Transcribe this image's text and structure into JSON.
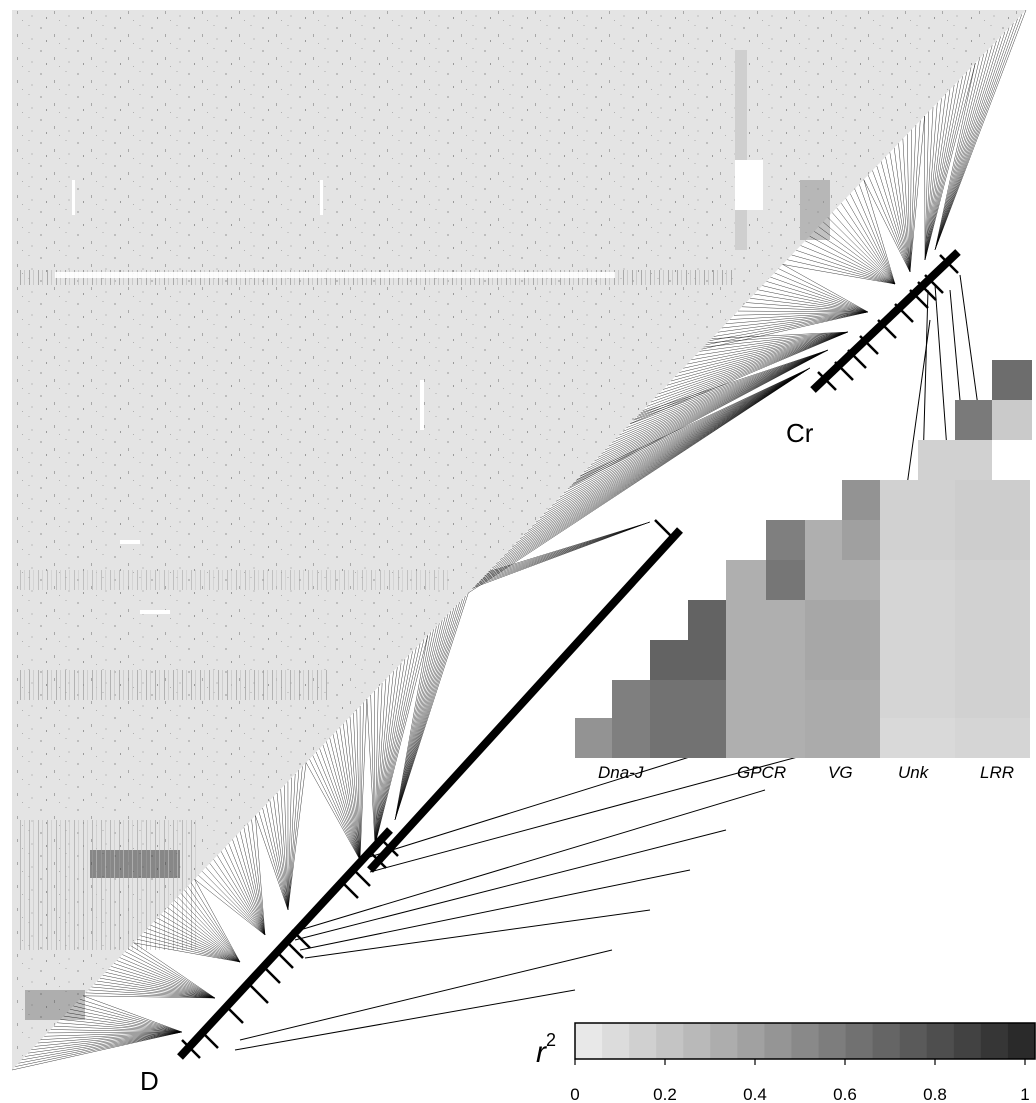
{
  "labels": {
    "cr": "Cr",
    "d": "D",
    "genes": [
      "Dna-J",
      "GPCR",
      "VG",
      "Unk",
      "LRR"
    ],
    "scale_symbol": "r",
    "scale_superscript": "2"
  },
  "chart_data": {
    "type": "heatmap",
    "title": "",
    "row_groups": [
      "Dna-J",
      "GPCR",
      "VG",
      "Unk",
      "LRR"
    ],
    "scale": {
      "label": "r2",
      "ticks": [
        "0",
        "0.2",
        "0.4",
        "0.6",
        "0.8",
        "1"
      ],
      "range": [
        0,
        1
      ]
    },
    "column_gray_levels": [
      0.45,
      0.55,
      0.62,
      0.7,
      0.7,
      0.3,
      0.32,
      0.3,
      0.6,
      0.3,
      0.32,
      0.38,
      0.08,
      0.1,
      0.12,
      0.58,
      0.65
    ]
  }
}
